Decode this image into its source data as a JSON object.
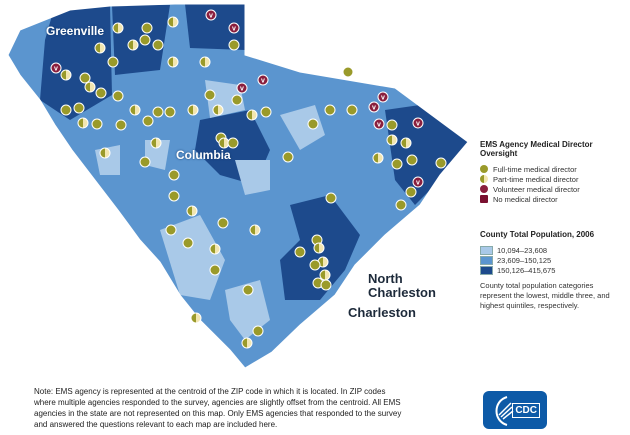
{
  "map": {
    "city_labels": {
      "greenville": "Greenville",
      "columbia": "Columbia",
      "north_charleston_1": "North",
      "north_charleston_2": "Charleston",
      "charleston": "Charleston"
    },
    "marker_types": {
      "f": "full-time",
      "p": "part-time",
      "v": "volunteer",
      "n": "none"
    },
    "colors": {
      "light": "#a9c9e8",
      "mid": "#5b95cf",
      "dark": "#1d4a8c",
      "full": "#9a9a2a",
      "volunteer": "#8a1f3e"
    }
  },
  "legend": {
    "oversight_title": "EMS Agency Medical Director Oversight",
    "oversight_items": [
      "Full-time medical director",
      "Part-time medical director",
      "Volunteer medical director",
      "No medical director"
    ],
    "population_title": "County Total Population, 2006",
    "population_items": [
      "10,094–23,608",
      "23,609–150,125",
      "150,126–415,675"
    ],
    "population_note": "County total population categories represent the lowest, middle three, and highest quintiles, respectively."
  },
  "note": "Note: EMS agency is represented at the centroid of the ZIP code in which it is located. In ZIP codes where multiple agencies responded to the survey, agencies are slightly offset from the centroid. All EMS agencies in the state are not represented on this map. Only EMS agencies that responded to the survey and answered the questions relevant to each map are included here.",
  "logo": {
    "text": "CDC"
  }
}
